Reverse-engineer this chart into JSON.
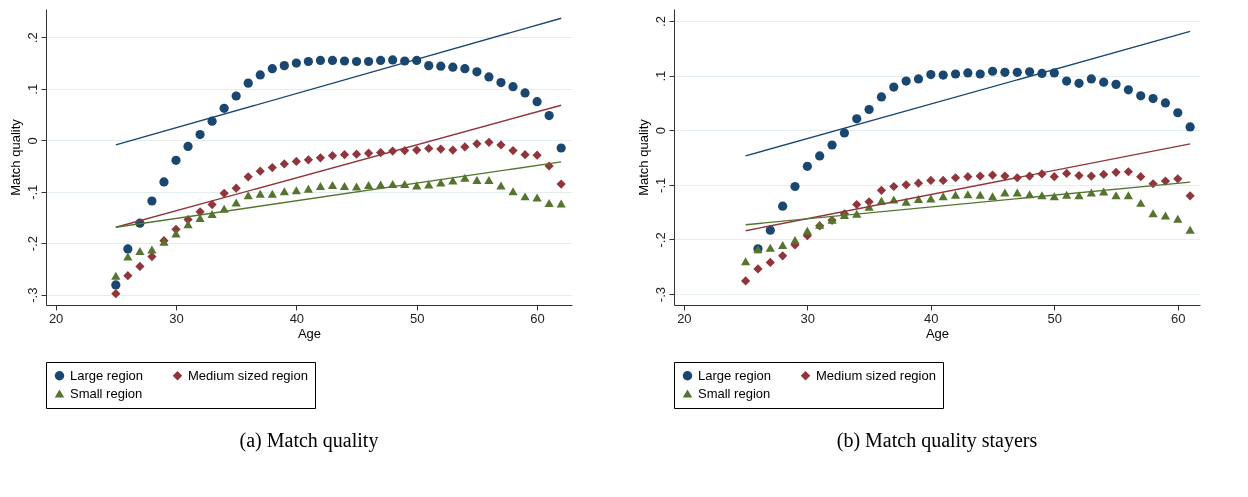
{
  "chart_data": [
    {
      "type": "scatter",
      "title": "(a) Match quality",
      "xlabel": "Age",
      "ylabel": "Match quality",
      "xlim": [
        19.2,
        62.9
      ],
      "ylim": [
        -0.32,
        0.255
      ],
      "xticks": [
        20,
        30,
        40,
        50,
        60
      ],
      "yticks": [
        {
          "value": -0.3,
          "label": "-.3"
        },
        {
          "value": -0.2,
          "label": "-.2"
        },
        {
          "value": -0.1,
          "label": "-.1"
        },
        0,
        {
          "value": 0.1,
          "label": ".1"
        },
        {
          "value": 0.2,
          "label": ".2"
        }
      ],
      "grid": "y",
      "legend": "bottom",
      "series": [
        {
          "name": "Large region",
          "type": "scatter",
          "marker": "circle",
          "color": "#1a476f",
          "x": [
            25,
            26,
            27,
            28,
            29,
            30,
            31,
            32,
            33,
            34,
            35,
            36,
            37,
            38,
            39,
            40,
            41,
            42,
            43,
            44,
            45,
            46,
            47,
            48,
            49,
            50,
            51,
            52,
            53,
            54,
            55,
            56,
            57,
            58,
            59,
            60,
            61,
            62
          ],
          "values": [
            -0.281,
            -0.211,
            -0.161,
            -0.118,
            -0.081,
            -0.039,
            -0.012,
            0.011,
            0.037,
            0.062,
            0.086,
            0.111,
            0.127,
            0.139,
            0.145,
            0.15,
            0.153,
            0.155,
            0.155,
            0.154,
            0.153,
            0.153,
            0.155,
            0.156,
            0.154,
            0.155,
            0.145,
            0.144,
            0.142,
            0.139,
            0.133,
            0.123,
            0.112,
            0.104,
            0.092,
            0.075,
            0.048,
            -0.015
          ]
        },
        {
          "name": "Medium sized region",
          "type": "scatter",
          "marker": "diamond",
          "color": "#90353b",
          "x": [
            25,
            26,
            27,
            28,
            29,
            30,
            31,
            32,
            33,
            34,
            35,
            36,
            37,
            38,
            39,
            40,
            41,
            42,
            43,
            44,
            45,
            46,
            47,
            48,
            49,
            50,
            51,
            52,
            53,
            54,
            55,
            56,
            57,
            58,
            59,
            60,
            61,
            62
          ],
          "values": [
            -0.298,
            -0.263,
            -0.245,
            -0.226,
            -0.195,
            -0.173,
            -0.154,
            -0.139,
            -0.125,
            -0.103,
            -0.093,
            -0.071,
            -0.06,
            -0.053,
            -0.046,
            -0.041,
            -0.038,
            -0.034,
            -0.03,
            -0.028,
            -0.027,
            -0.025,
            -0.024,
            -0.021,
            -0.02,
            -0.019,
            -0.016,
            -0.017,
            -0.019,
            -0.013,
            -0.007,
            -0.004,
            -0.009,
            -0.02,
            -0.028,
            -0.029,
            -0.05,
            -0.085
          ]
        },
        {
          "name": "Small region",
          "type": "scatter",
          "marker": "triangle",
          "color": "#55752f",
          "x": [
            25,
            26,
            27,
            28,
            29,
            30,
            31,
            32,
            33,
            34,
            35,
            36,
            37,
            38,
            39,
            40,
            41,
            42,
            43,
            44,
            45,
            46,
            47,
            48,
            49,
            50,
            51,
            52,
            53,
            54,
            55,
            56,
            57,
            58,
            59,
            60,
            61,
            62
          ],
          "values": [
            -0.263,
            -0.226,
            -0.215,
            -0.212,
            -0.197,
            -0.181,
            -0.163,
            -0.151,
            -0.143,
            -0.133,
            -0.121,
            -0.107,
            -0.104,
            -0.104,
            -0.099,
            -0.097,
            -0.094,
            -0.089,
            -0.087,
            -0.089,
            -0.09,
            -0.087,
            -0.086,
            -0.085,
            -0.085,
            -0.088,
            -0.086,
            -0.082,
            -0.078,
            -0.073,
            -0.077,
            -0.077,
            -0.088,
            -0.099,
            -0.109,
            -0.111,
            -0.122,
            -0.123
          ]
        },
        {
          "type": "line",
          "color": "#1a476f",
          "x": [
            25,
            62
          ],
          "values": [
            -0.009,
            0.237
          ]
        },
        {
          "type": "line",
          "color": "#90353b",
          "x": [
            25,
            62
          ],
          "values": [
            -0.169,
            0.068
          ]
        },
        {
          "type": "line",
          "color": "#55752f",
          "x": [
            25,
            62
          ],
          "values": [
            -0.169,
            -0.042
          ]
        }
      ]
    },
    {
      "type": "scatter",
      "title": "(b) Match quality stayers",
      "xlabel": "Age",
      "ylabel": "Match quality",
      "xlim": [
        19.2,
        61.8
      ],
      "ylim": [
        -0.32,
        0.222
      ],
      "xticks": [
        20,
        30,
        40,
        50,
        60
      ],
      "yticks": [
        {
          "value": -0.3,
          "label": "-.3"
        },
        {
          "value": -0.2,
          "label": "-.2"
        },
        {
          "value": -0.1,
          "label": "-.1"
        },
        0,
        {
          "value": 0.1,
          "label": ".1"
        },
        {
          "value": 0.2,
          "label": ".2"
        }
      ],
      "grid": "y",
      "legend": "bottom",
      "series": [
        {
          "name": "Large region",
          "type": "scatter",
          "marker": "circle",
          "color": "#1a476f",
          "x": [
            26,
            27,
            28,
            29,
            30,
            31,
            32,
            33,
            34,
            35,
            36,
            37,
            38,
            39,
            40,
            41,
            42,
            43,
            44,
            45,
            46,
            47,
            48,
            49,
            50,
            51,
            52,
            53,
            54,
            55,
            56,
            57,
            58,
            59,
            60,
            61
          ],
          "values": [
            -0.217,
            -0.183,
            -0.139,
            -0.103,
            -0.066,
            -0.047,
            -0.027,
            -0.005,
            0.021,
            0.038,
            0.061,
            0.079,
            0.09,
            0.094,
            0.102,
            0.101,
            0.103,
            0.105,
            0.103,
            0.108,
            0.106,
            0.106,
            0.107,
            0.104,
            0.105,
            0.09,
            0.086,
            0.094,
            0.088,
            0.084,
            0.074,
            0.063,
            0.058,
            0.05,
            0.032,
            0.006
          ]
        },
        {
          "name": "Medium sized region",
          "type": "scatter",
          "marker": "diamond",
          "color": "#90353b",
          "x": [
            25,
            26,
            27,
            28,
            29,
            30,
            31,
            32,
            33,
            34,
            35,
            36,
            37,
            38,
            39,
            40,
            41,
            42,
            43,
            44,
            45,
            46,
            47,
            48,
            49,
            50,
            51,
            52,
            53,
            54,
            55,
            56,
            57,
            58,
            59,
            60,
            61
          ],
          "values": [
            -0.276,
            -0.254,
            -0.242,
            -0.23,
            -0.21,
            -0.193,
            -0.175,
            -0.165,
            -0.153,
            -0.136,
            -0.131,
            -0.11,
            -0.103,
            -0.1,
            -0.097,
            -0.092,
            -0.092,
            -0.087,
            -0.085,
            -0.084,
            -0.082,
            -0.084,
            -0.087,
            -0.084,
            -0.08,
            -0.085,
            -0.079,
            -0.083,
            -0.084,
            -0.081,
            -0.077,
            -0.076,
            -0.085,
            -0.098,
            -0.093,
            -0.089,
            -0.12
          ]
        },
        {
          "name": "Small region",
          "type": "scatter",
          "marker": "triangle",
          "color": "#55752f",
          "x": [
            25,
            26,
            27,
            28,
            29,
            30,
            31,
            32,
            33,
            34,
            35,
            36,
            37,
            38,
            39,
            40,
            41,
            42,
            43,
            44,
            45,
            46,
            47,
            48,
            49,
            50,
            51,
            52,
            53,
            54,
            55,
            56,
            57,
            58,
            59,
            60,
            61
          ],
          "values": [
            -0.24,
            -0.218,
            -0.215,
            -0.21,
            -0.201,
            -0.184,
            -0.173,
            -0.164,
            -0.155,
            -0.153,
            -0.14,
            -0.129,
            -0.127,
            -0.131,
            -0.126,
            -0.125,
            -0.121,
            -0.118,
            -0.117,
            -0.118,
            -0.121,
            -0.114,
            -0.114,
            -0.117,
            -0.119,
            -0.121,
            -0.118,
            -0.119,
            -0.114,
            -0.112,
            -0.119,
            -0.119,
            -0.133,
            -0.152,
            -0.156,
            -0.162,
            -0.182
          ]
        },
        {
          "type": "line",
          "color": "#1a476f",
          "x": [
            25,
            61
          ],
          "values": [
            -0.047,
            0.181
          ]
        },
        {
          "type": "line",
          "color": "#90353b",
          "x": [
            25,
            61
          ],
          "values": [
            -0.184,
            -0.025
          ]
        },
        {
          "type": "line",
          "color": "#55752f",
          "x": [
            25,
            61
          ],
          "values": [
            -0.173,
            -0.095
          ]
        }
      ]
    }
  ]
}
